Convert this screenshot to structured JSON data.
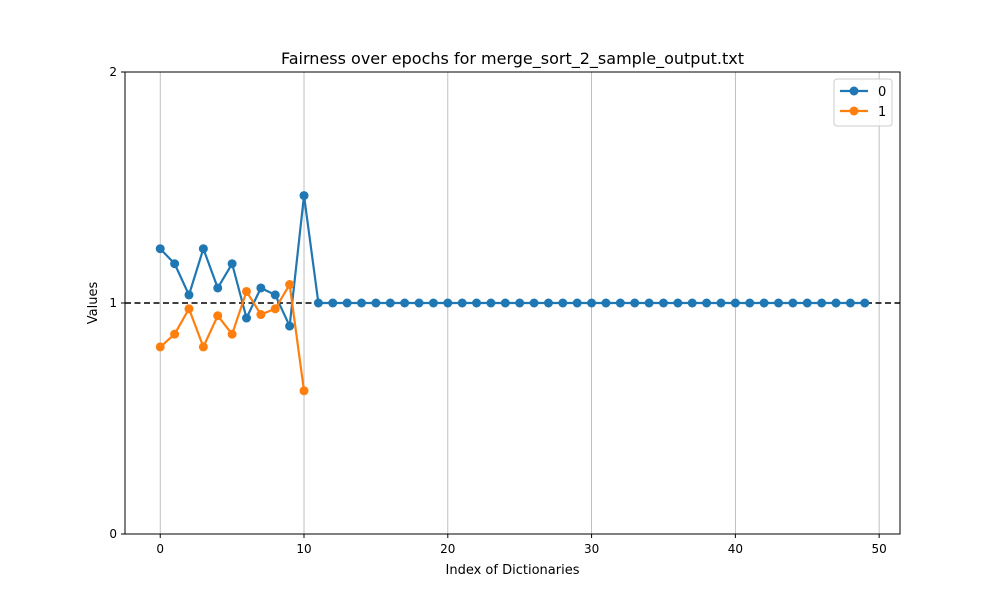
{
  "chart_data": {
    "type": "line",
    "title": "Fairness over epochs for merge_sort_2_sample_output.txt",
    "xlabel": "Index of Dictionaries",
    "ylabel": "Values",
    "xlim": [
      -2.45,
      51.45
    ],
    "ylim": [
      0,
      2
    ],
    "xticks": [
      0,
      10,
      20,
      30,
      40,
      50
    ],
    "yticks": [
      0,
      1,
      2
    ],
    "grid": "x-major",
    "reference_line": {
      "y": 1,
      "style": "dashed",
      "color": "#000000"
    },
    "legend": {
      "placement": "top-right"
    },
    "series": [
      {
        "name": "0",
        "color": "#1f77b4",
        "x": [
          0,
          1,
          2,
          3,
          4,
          5,
          6,
          7,
          8,
          9,
          10,
          11,
          12,
          13,
          14,
          15,
          16,
          17,
          18,
          19,
          20,
          21,
          22,
          23,
          24,
          25,
          26,
          27,
          28,
          29,
          30,
          31,
          32,
          33,
          34,
          35,
          36,
          37,
          38,
          39,
          40,
          41,
          42,
          43,
          44,
          45,
          46,
          47,
          48,
          49
        ],
        "values": [
          1.235,
          1.17,
          1.035,
          1.235,
          1.065,
          1.17,
          0.935,
          1.065,
          1.035,
          0.9,
          1.465,
          1,
          1,
          1,
          1,
          1,
          1,
          1,
          1,
          1,
          1,
          1,
          1,
          1,
          1,
          1,
          1,
          1,
          1,
          1,
          1,
          1,
          1,
          1,
          1,
          1,
          1,
          1,
          1,
          1,
          1,
          1,
          1,
          1,
          1,
          1,
          1,
          1,
          1,
          1
        ]
      },
      {
        "name": "1",
        "color": "#ff7f0e",
        "x": [
          0,
          1,
          2,
          3,
          4,
          5,
          6,
          7,
          8,
          9,
          10
        ],
        "values": [
          0.81,
          0.865,
          0.975,
          0.81,
          0.945,
          0.865,
          1.05,
          0.95,
          0.975,
          1.08,
          0.62
        ]
      }
    ]
  }
}
